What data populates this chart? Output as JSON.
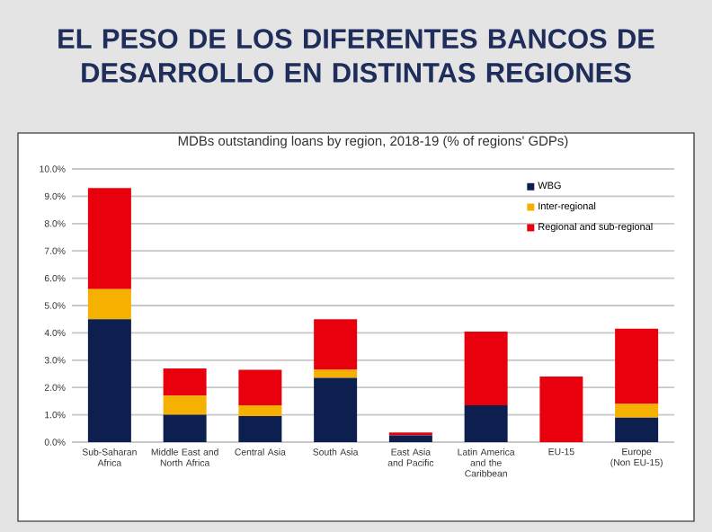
{
  "chart_data": {
    "type": "bar",
    "stacked": true,
    "title": "EL PESO DE LOS DIFERENTES BANCOS DE DESARROLLO EN DISTINTAS REGIONES",
    "subtitle": "MDBs outstanding loans by region, 2018-19 (% of regions' GDPs)",
    "categories": [
      "Sub-Saharan Africa",
      "Middle East and North Africa",
      "Central Asia",
      "South Asia",
      "East Asia and Pacific",
      "Latin America and the Caribbean",
      "EU-15",
      "Europe (Non EU-15)"
    ],
    "series": [
      {
        "name": "WBG",
        "color": "#0d1f4f",
        "values": [
          4.5,
          1.0,
          0.95,
          2.35,
          0.25,
          1.35,
          0,
          0.9
        ]
      },
      {
        "name": "Inter-regional",
        "color": "#f5b000",
        "values": [
          1.1,
          0.7,
          0.4,
          0.3,
          0,
          0,
          0,
          0.5
        ]
      },
      {
        "name": "Regional and sub-regional",
        "color": "#e8000d",
        "values": [
          3.7,
          1.0,
          1.3,
          1.85,
          0.1,
          2.7,
          2.4,
          2.75
        ]
      }
    ],
    "ylim": [
      0,
      10
    ],
    "yticks": [
      {
        "value": 0,
        "label": "0.0%"
      },
      {
        "value": 1,
        "label": "1.0%"
      },
      {
        "value": 2,
        "label": "2.0%"
      },
      {
        "value": 3,
        "label": "3.0%"
      },
      {
        "value": 4,
        "label": "4.0%"
      },
      {
        "value": 5,
        "label": "5.0%"
      },
      {
        "value": 6,
        "label": "6.0%"
      },
      {
        "value": 7,
        "label": "7.0%"
      },
      {
        "value": 8,
        "label": "8.0%"
      },
      {
        "value": 9,
        "label": "9.0%"
      },
      {
        "value": 10,
        "label": "10.0%"
      }
    ],
    "grid": "y",
    "legend": "top right"
  }
}
